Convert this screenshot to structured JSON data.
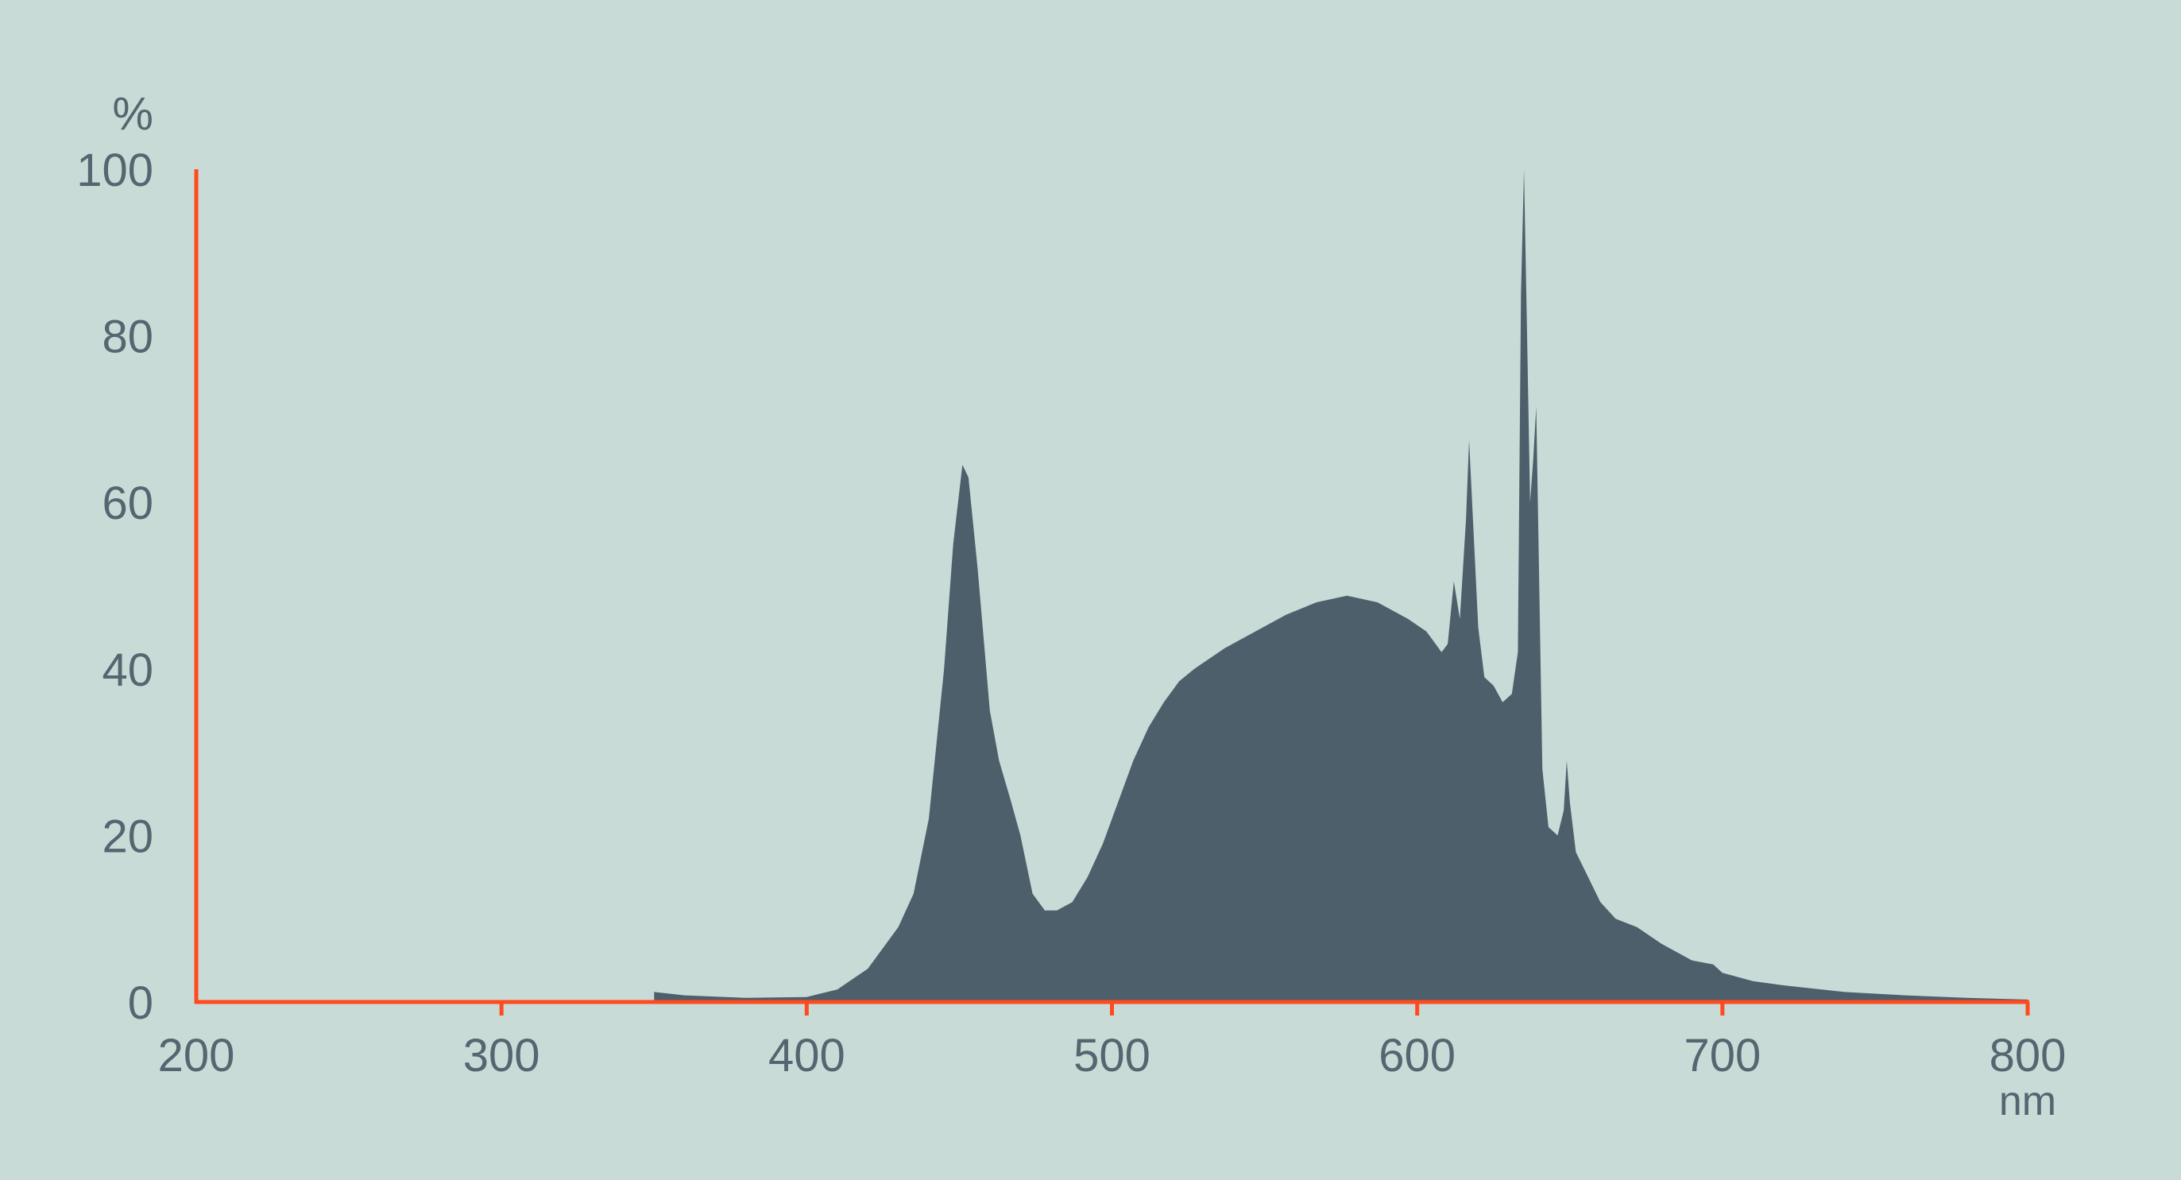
{
  "chart_data": {
    "type": "area",
    "title": "",
    "xlabel": "nm",
    "ylabel": "%",
    "xlim": [
      200,
      800
    ],
    "ylim": [
      0,
      100
    ],
    "x_ticks": [
      200,
      300,
      400,
      500,
      600,
      700,
      800
    ],
    "y_ticks": [
      0,
      20,
      40,
      60,
      80,
      100
    ],
    "grid": false,
    "colors": {
      "background": "#c9dbd7",
      "axis": "#ff4a1f",
      "fill": "#4d5f6b",
      "text": "#56656f"
    },
    "points": [
      [
        350,
        0
      ],
      [
        350,
        1.2
      ],
      [
        360,
        0.8
      ],
      [
        380,
        0.5
      ],
      [
        400,
        0.6
      ],
      [
        410,
        1.5
      ],
      [
        420,
        4
      ],
      [
        430,
        9
      ],
      [
        435,
        13
      ],
      [
        440,
        22
      ],
      [
        445,
        40
      ],
      [
        448,
        55
      ],
      [
        451,
        64.5
      ],
      [
        453,
        63
      ],
      [
        456,
        52
      ],
      [
        460,
        35
      ],
      [
        463,
        29
      ],
      [
        467,
        24
      ],
      [
        470,
        20
      ],
      [
        474,
        13
      ],
      [
        478,
        11
      ],
      [
        482,
        11
      ],
      [
        487,
        12
      ],
      [
        492,
        15
      ],
      [
        497,
        19
      ],
      [
        502,
        24
      ],
      [
        507,
        29
      ],
      [
        512,
        33
      ],
      [
        517,
        36
      ],
      [
        522,
        38.5
      ],
      [
        527,
        40
      ],
      [
        537,
        42.5
      ],
      [
        547,
        44.5
      ],
      [
        557,
        46.5
      ],
      [
        567,
        48
      ],
      [
        577,
        48.8
      ],
      [
        587,
        48
      ],
      [
        597,
        46
      ],
      [
        603,
        44.5
      ],
      [
        608,
        42
      ],
      [
        610,
        43
      ],
      [
        612,
        50.5
      ],
      [
        614,
        46
      ],
      [
        616,
        58
      ],
      [
        617,
        67.5
      ],
      [
        618,
        60
      ],
      [
        620,
        45
      ],
      [
        622,
        39
      ],
      [
        625,
        38
      ],
      [
        628,
        36
      ],
      [
        631,
        37
      ],
      [
        633,
        42
      ],
      [
        634,
        85
      ],
      [
        635,
        100
      ],
      [
        636,
        80
      ],
      [
        637,
        60
      ],
      [
        638,
        65
      ],
      [
        639,
        71.5
      ],
      [
        640,
        50
      ],
      [
        641,
        28
      ],
      [
        643,
        21
      ],
      [
        646,
        20
      ],
      [
        648,
        23
      ],
      [
        649,
        29
      ],
      [
        650,
        24
      ],
      [
        652,
        18
      ],
      [
        656,
        15
      ],
      [
        660,
        12
      ],
      [
        665,
        10
      ],
      [
        672,
        9
      ],
      [
        680,
        7
      ],
      [
        690,
        5
      ],
      [
        697,
        4.5
      ],
      [
        700,
        3.5
      ],
      [
        710,
        2.5
      ],
      [
        720,
        2
      ],
      [
        740,
        1.2
      ],
      [
        760,
        0.8
      ],
      [
        780,
        0.5
      ],
      [
        800,
        0.3
      ],
      [
        800,
        0
      ]
    ]
  }
}
